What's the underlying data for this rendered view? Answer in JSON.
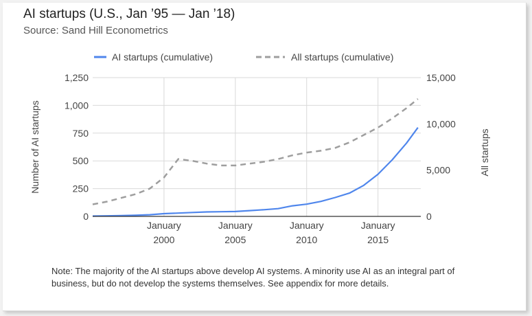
{
  "title": "AI startups (U.S., Jan ’95 — Jan ’18)",
  "subtitle": "Source: Sand Hill Econometrics",
  "note": "Note: The majority of the AI startups above develop AI systems. A minority use AI as an integral part of business, but do not develop the systems themselves. See appendix for more details.",
  "colors": {
    "ai_series": "#4f86ec",
    "all_series": "#9e9e9e",
    "grid": "#d9d9d9"
  },
  "chart_data": {
    "type": "line",
    "title": "AI startups (U.S., Jan ’95 — Jan ’18)",
    "legend_position": "top",
    "grid": true,
    "xlim": [
      1995.0,
      2018.0
    ],
    "ylim": [
      0,
      1250
    ],
    "y2lim": [
      0,
      15000
    ],
    "ylabel": "Number of AI startups",
    "y2label": "All startups",
    "y_ticks": [
      {
        "value": 0,
        "label": "0"
      },
      {
        "value": 250,
        "label": "250"
      },
      {
        "value": 500,
        "label": "500"
      },
      {
        "value": 750,
        "label": "750"
      },
      {
        "value": 1000,
        "label": "1,000"
      },
      {
        "value": 1250,
        "label": "1,250"
      }
    ],
    "y2_ticks": [
      {
        "value": 0,
        "label": "0"
      },
      {
        "value": 5000,
        "label": "5,000"
      },
      {
        "value": 10000,
        "label": "10,000"
      },
      {
        "value": 15000,
        "label": "15,000"
      }
    ],
    "x_ticks": [
      {
        "value": 2000,
        "line1": "January",
        "line2": "2000"
      },
      {
        "value": 2005,
        "line1": "January",
        "line2": "2005"
      },
      {
        "value": 2010,
        "line1": "January",
        "line2": "2010"
      },
      {
        "value": 2015,
        "line1": "January",
        "line2": "2015"
      }
    ],
    "series": [
      {
        "name": "AI startups (cumulative)",
        "axis": "left",
        "style": "solid",
        "x": [
          1995,
          1996,
          1997,
          1998,
          1999,
          2000,
          2001,
          2002,
          2003,
          2004,
          2005,
          2006,
          2007,
          2008,
          2009,
          2010,
          2011,
          2012,
          2013,
          2014,
          2015,
          2016,
          2017,
          2017.8
        ],
        "y": [
          3,
          5,
          7,
          10,
          15,
          25,
          30,
          35,
          40,
          42,
          44,
          52,
          60,
          70,
          95,
          110,
          135,
          170,
          210,
          280,
          380,
          510,
          660,
          800
        ]
      },
      {
        "name": "All startups (cumulative)",
        "axis": "right",
        "style": "dashed",
        "x": [
          1995,
          1996,
          1997,
          1998,
          1999,
          2000,
          2001,
          2002,
          2003,
          2004,
          2005,
          2006,
          2007,
          2008,
          2009,
          2010,
          2011,
          2012,
          2013,
          2014,
          2015,
          2016,
          2017,
          2017.8
        ],
        "y": [
          1300,
          1600,
          2000,
          2400,
          3000,
          4200,
          6200,
          6000,
          5700,
          5500,
          5500,
          5700,
          5900,
          6200,
          6600,
          6900,
          7100,
          7400,
          8000,
          8800,
          9600,
          10600,
          11700,
          12700
        ]
      }
    ]
  }
}
